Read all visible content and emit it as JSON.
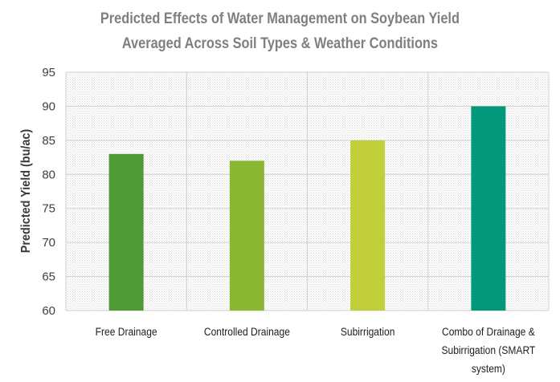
{
  "chart_data": {
    "type": "bar",
    "title": [
      "Predicted Effects of Water Management on Soybean Yield",
      "Averaged Across Soil Types & Weather Conditions"
    ],
    "ylabel": "Predicted Yield (bu/ac)",
    "xlabel": "",
    "ylim": [
      60,
      95
    ],
    "yticks": [
      60,
      65,
      70,
      75,
      80,
      85,
      90,
      95
    ],
    "categories": [
      [
        "Free Drainage"
      ],
      [
        "Controlled Drainage"
      ],
      [
        "Subirrigation"
      ],
      [
        "Combo of Drainage &",
        "Subirrigation (SMART",
        "system)"
      ]
    ],
    "values": [
      83,
      82,
      85,
      90
    ],
    "colors": [
      "#4f9a35",
      "#8ab833",
      "#c1cf3a",
      "#04987a"
    ],
    "grid": true,
    "legend": "none"
  }
}
